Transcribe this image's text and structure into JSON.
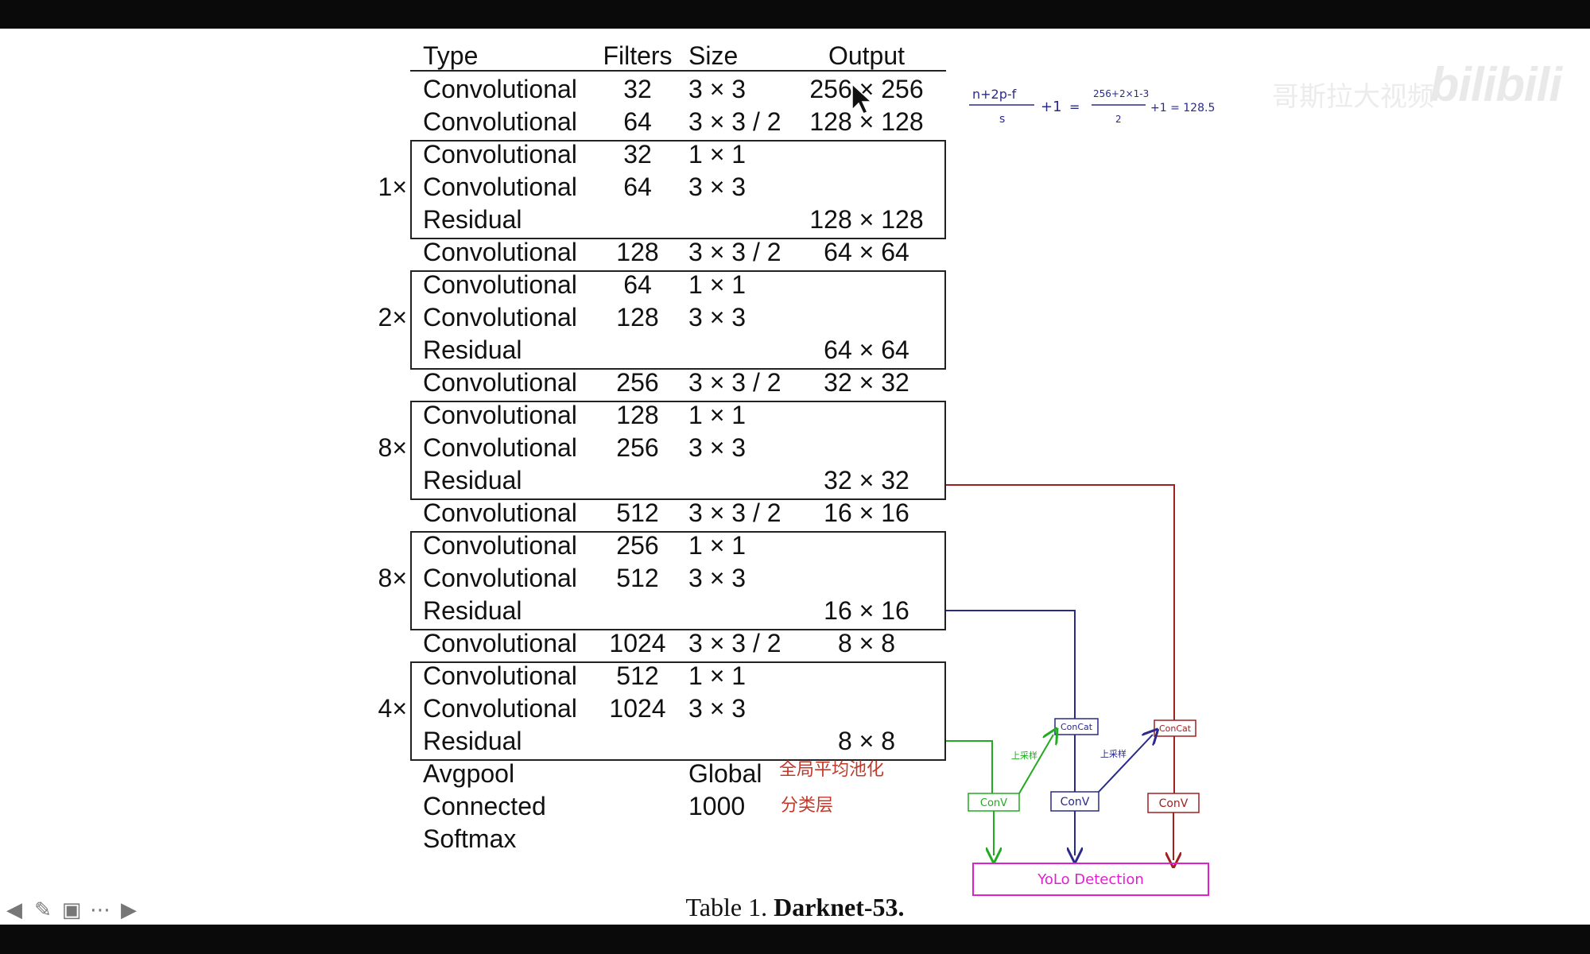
{
  "table": {
    "headers": {
      "type": "Type",
      "filters": "Filters",
      "size": "Size",
      "output": "Output"
    },
    "rows": [
      {
        "type": "Convolutional",
        "filters": "32",
        "size": "3 × 3",
        "output": "256 × 256"
      },
      {
        "type": "Convolutional",
        "filters": "64",
        "size": "3 × 3 / 2",
        "output": "128 × 128"
      },
      {
        "type": "Convolutional",
        "filters": "32",
        "size": "1 × 1",
        "output": ""
      },
      {
        "type": "Convolutional",
        "filters": "64",
        "size": "3 × 3",
        "output": ""
      },
      {
        "type": "Residual",
        "filters": "",
        "size": "",
        "output": "128 × 128"
      },
      {
        "type": "Convolutional",
        "filters": "128",
        "size": "3 × 3 / 2",
        "output": "64 × 64"
      },
      {
        "type": "Convolutional",
        "filters": "64",
        "size": "1 × 1",
        "output": ""
      },
      {
        "type": "Convolutional",
        "filters": "128",
        "size": "3 × 3",
        "output": ""
      },
      {
        "type": "Residual",
        "filters": "",
        "size": "",
        "output": "64 × 64"
      },
      {
        "type": "Convolutional",
        "filters": "256",
        "size": "3 × 3 / 2",
        "output": "32 × 32"
      },
      {
        "type": "Convolutional",
        "filters": "128",
        "size": "1 × 1",
        "output": ""
      },
      {
        "type": "Convolutional",
        "filters": "256",
        "size": "3 × 3",
        "output": ""
      },
      {
        "type": "Residual",
        "filters": "",
        "size": "",
        "output": "32 × 32"
      },
      {
        "type": "Convolutional",
        "filters": "512",
        "size": "3 × 3 / 2",
        "output": "16 × 16"
      },
      {
        "type": "Convolutional",
        "filters": "256",
        "size": "1 × 1",
        "output": ""
      },
      {
        "type": "Convolutional",
        "filters": "512",
        "size": "3 × 3",
        "output": ""
      },
      {
        "type": "Residual",
        "filters": "",
        "size": "",
        "output": "16 × 16"
      },
      {
        "type": "Convolutional",
        "filters": "1024",
        "size": "3 × 3 / 2",
        "output": "8 × 8"
      },
      {
        "type": "Convolutional",
        "filters": "512",
        "size": "1 × 1",
        "output": ""
      },
      {
        "type": "Convolutional",
        "filters": "1024",
        "size": "3 × 3",
        "output": ""
      },
      {
        "type": "Residual",
        "filters": "",
        "size": "",
        "output": "8 × 8"
      },
      {
        "type": "Avgpool",
        "filters": "",
        "size": "Global",
        "output": ""
      },
      {
        "type": "Connected",
        "filters": "",
        "size": "1000",
        "output": ""
      },
      {
        "type": "Softmax",
        "filters": "",
        "size": "",
        "output": ""
      }
    ],
    "multipliers": [
      "1×",
      "2×",
      "8×",
      "8×",
      "4×"
    ]
  },
  "caption": {
    "prefix": "Table 1.",
    "name": "Darknet-53."
  },
  "annotations": {
    "avgpool_note": "全局平均池化",
    "connected_note": "分类层",
    "formula": {
      "lhs_num": "n+2p-f",
      "lhs_den": "s",
      "plus_one": "+1",
      "equals": "=",
      "rhs_num": "256+2×1-3",
      "rhs_den": "2",
      "result": "+1 = 128.5"
    }
  },
  "yolo_diagram": {
    "concat_left": "ConCat",
    "concat_right": "ConCat",
    "conv_left": "ConV",
    "conv_mid": "ConV",
    "conv_right": "ConV",
    "upsample_left": "上采样",
    "upsample_right": "上采样",
    "detection": "YoLo Detection",
    "colors": {
      "green": "#22aa22",
      "blue": "#2a2a8a",
      "red": "#a02020",
      "magenta": "#e020d0"
    }
  },
  "watermark": {
    "brand": "bilibili",
    "channel": "哥斯拉大视频"
  },
  "nav_icons": [
    "arrow-left-icon",
    "pen-icon",
    "slide-icon",
    "more-icon",
    "arrow-right-icon"
  ]
}
